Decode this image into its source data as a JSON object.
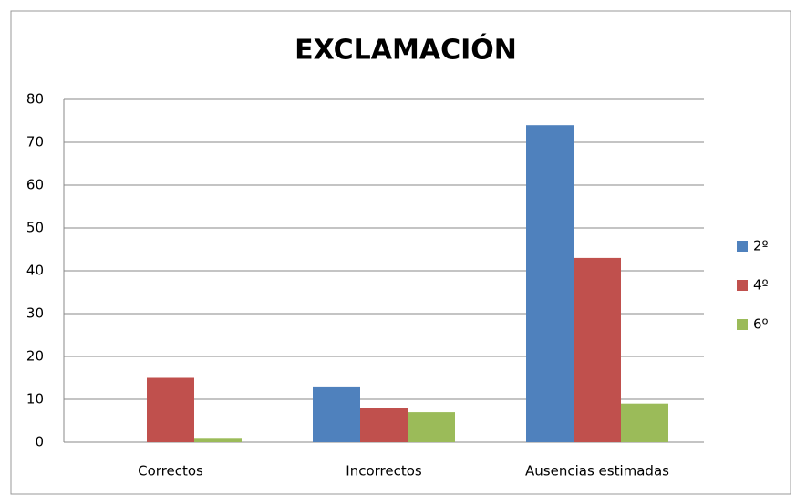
{
  "chart_data": {
    "type": "bar",
    "title": "EXCLAMACIÓN",
    "categories": [
      "Correctos",
      "Incorrectos",
      "Ausencias estimadas"
    ],
    "series": [
      {
        "name": "2º",
        "color": "#4f81bd",
        "values": [
          0,
          13,
          74
        ]
      },
      {
        "name": "4º",
        "color": "#c0504d",
        "values": [
          15,
          8,
          43
        ]
      },
      {
        "name": "6º",
        "color": "#9bbb59",
        "values": [
          1,
          7,
          9
        ]
      }
    ],
    "ylim": [
      0,
      80
    ],
    "yticks": [
      0,
      10,
      20,
      30,
      40,
      50,
      60,
      70,
      80
    ],
    "grid": true,
    "legend": "right"
  }
}
